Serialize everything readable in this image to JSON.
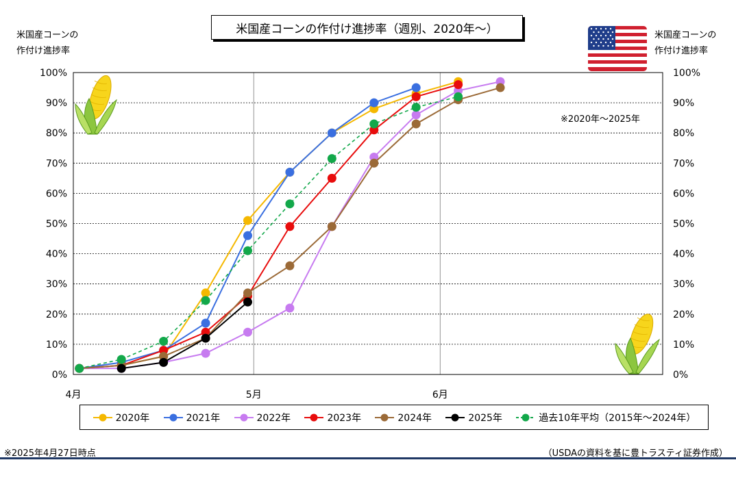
{
  "title": "米国産コーンの作付け進捗率（週別、2020年～）",
  "left_axis_title": [
    "米国産コーンの",
    "作付け進捗率"
  ],
  "right_axis_title": [
    "米国産コーンの",
    "作付け進捗率"
  ],
  "range_note": "※2020年～2025年",
  "footer_left": "※2025年4月27日時点",
  "footer_right": "（USDAの資料を基に豊トラスティ証券作成）",
  "icons": [
    "us-flag-icon",
    "corn-icon"
  ],
  "chart_data": {
    "type": "line",
    "x_axis": {
      "unit": "day-of-year",
      "range": [
        91,
        189
      ],
      "ticks": [
        {
          "day": 91,
          "label": "4月"
        },
        {
          "day": 121,
          "label": "5月"
        },
        {
          "day": 152,
          "label": "6月"
        }
      ]
    },
    "y_axis": {
      "range": [
        0,
        100
      ],
      "ticks": [
        "0%",
        "10%",
        "20%",
        "30%",
        "40%",
        "50%",
        "60%",
        "70%",
        "80%",
        "90%",
        "100%"
      ],
      "both_sides": true
    },
    "grid": true,
    "legend_position": "bottom",
    "series": [
      {
        "name": "2020年",
        "color": "#f5b800",
        "dashed": false,
        "points": [
          [
            92,
            2
          ],
          [
            99,
            3
          ],
          [
            106,
            6
          ],
          [
            113,
            27
          ],
          [
            120,
            51
          ],
          [
            127,
            67
          ],
          [
            134,
            80
          ],
          [
            141,
            88
          ],
          [
            148,
            93
          ],
          [
            155,
            97
          ]
        ]
      },
      {
        "name": "2021年",
        "color": "#3a6fe0",
        "dashed": false,
        "points": [
          [
            92,
            2
          ],
          [
            99,
            4
          ],
          [
            106,
            8
          ],
          [
            113,
            17
          ],
          [
            120,
            46
          ],
          [
            127,
            67
          ],
          [
            134,
            80
          ],
          [
            141,
            90
          ],
          [
            148,
            95
          ]
        ]
      },
      {
        "name": "2022年",
        "color": "#c77bf0",
        "dashed": false,
        "points": [
          [
            92,
            2
          ],
          [
            99,
            2
          ],
          [
            106,
            4
          ],
          [
            113,
            7
          ],
          [
            120,
            14
          ],
          [
            127,
            22
          ],
          [
            134,
            49
          ],
          [
            141,
            72
          ],
          [
            148,
            86
          ],
          [
            155,
            94
          ],
          [
            162,
            97
          ]
        ]
      },
      {
        "name": "2023年",
        "color": "#e80c0c",
        "dashed": false,
        "points": [
          [
            92,
            2
          ],
          [
            99,
            3
          ],
          [
            106,
            8
          ],
          [
            113,
            14
          ],
          [
            120,
            26
          ],
          [
            127,
            49
          ],
          [
            134,
            65
          ],
          [
            141,
            81
          ],
          [
            148,
            92
          ],
          [
            155,
            96
          ]
        ]
      },
      {
        "name": "2024年",
        "color": "#9b6a37",
        "dashed": false,
        "points": [
          [
            92,
            2
          ],
          [
            99,
            3
          ],
          [
            106,
            6
          ],
          [
            113,
            12
          ],
          [
            120,
            27
          ],
          [
            127,
            36
          ],
          [
            134,
            49
          ],
          [
            141,
            70
          ],
          [
            148,
            83
          ],
          [
            155,
            91
          ],
          [
            162,
            95
          ]
        ]
      },
      {
        "name": "2025年",
        "color": "#000000",
        "dashed": false,
        "points": [
          [
            99,
            2
          ],
          [
            106,
            4
          ],
          [
            113,
            12
          ],
          [
            120,
            24
          ]
        ]
      },
      {
        "name": "過去10年平均（2015年～2024年）",
        "color": "#12a84a",
        "dashed": true,
        "points": [
          [
            92,
            2
          ],
          [
            99,
            5
          ],
          [
            106,
            11
          ],
          [
            113,
            24.5
          ],
          [
            120,
            41
          ],
          [
            127,
            56.5
          ],
          [
            134,
            71.5
          ],
          [
            141,
            83
          ],
          [
            148,
            88.5
          ],
          [
            155,
            92
          ]
        ]
      }
    ]
  }
}
